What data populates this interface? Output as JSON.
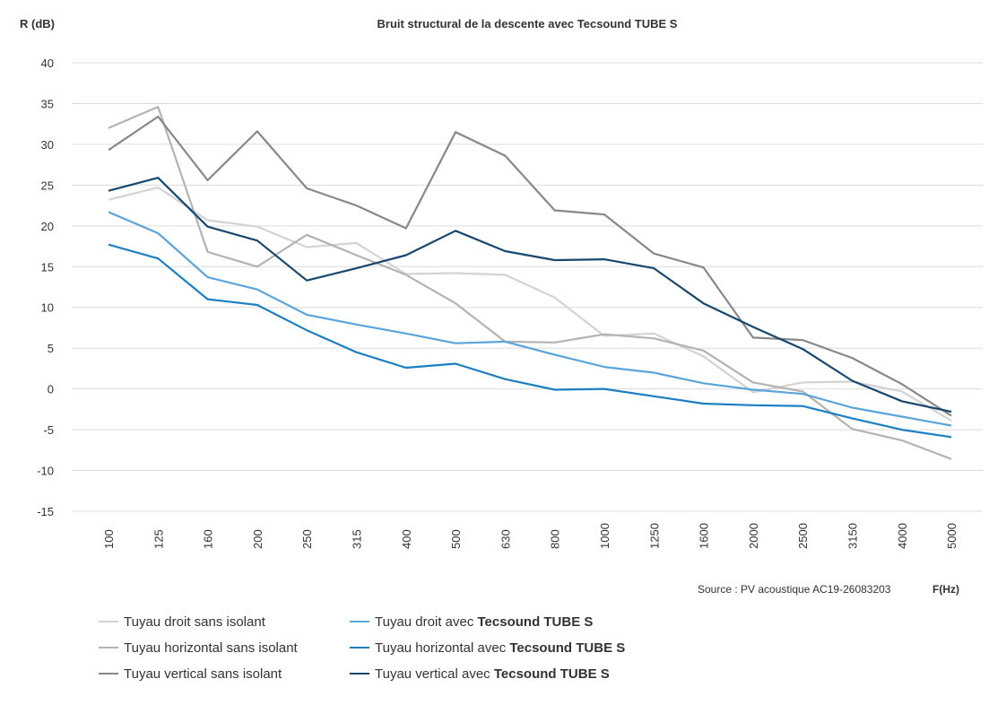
{
  "chart_data": {
    "type": "line",
    "title": "Bruit structural de la descente avec Tecsound TUBE S",
    "ylabel": "R (dB)",
    "xlabel": "F(Hz)",
    "source": "Source : PV acoustique AC19-26083203",
    "ylim": [
      -15,
      40
    ],
    "yticks": [
      40,
      35,
      30,
      25,
      20,
      15,
      10,
      5,
      0,
      -5,
      -10,
      -15
    ],
    "categories": [
      "100",
      "125",
      "160",
      "200",
      "250",
      "315",
      "400",
      "500",
      "630",
      "800",
      "1000",
      "1250",
      "1600",
      "2000",
      "2500",
      "3150",
      "4000",
      "5000"
    ],
    "grid": true,
    "legend_position": "bottom-left",
    "series": [
      {
        "name_plain": "Tuyau droit sans isolant",
        "name_bold": "",
        "color": "#d3d3d3",
        "values": [
          23.2,
          24.7,
          20.7,
          19.9,
          17.4,
          17.9,
          14.1,
          14.2,
          14.0,
          11.2,
          6.5,
          6.8,
          4.0,
          -0.4,
          0.8,
          0.9,
          -0.3,
          -3.9
        ]
      },
      {
        "name_plain": "Tuyau horizontal sans isolant",
        "name_bold": "",
        "color": "#b3b3b3",
        "values": [
          32.0,
          34.6,
          16.8,
          15.0,
          18.9,
          16.4,
          14.0,
          10.5,
          5.8,
          5.7,
          6.7,
          6.2,
          4.7,
          0.8,
          -0.3,
          -4.9,
          -6.3,
          -8.6
        ]
      },
      {
        "name_plain": "Tuyau vertical sans isolant",
        "name_bold": "",
        "color": "#888888",
        "values": [
          29.3,
          33.4,
          25.6,
          31.6,
          24.6,
          22.5,
          19.7,
          31.5,
          28.6,
          21.9,
          21.4,
          16.6,
          14.9,
          6.3,
          6.0,
          3.8,
          0.6,
          -3.3
        ]
      },
      {
        "name_plain": "Tuyau droit avec ",
        "name_bold": "Tecsound TUBE S",
        "color": "#5aa5db",
        "values": [
          21.7,
          19.1,
          13.7,
          12.2,
          9.1,
          7.9,
          6.8,
          5.6,
          5.8,
          4.2,
          2.7,
          2.0,
          0.7,
          -0.1,
          -0.6,
          -2.3,
          -3.4,
          -4.5
        ]
      },
      {
        "name_plain": "Tuyau horizontal avec ",
        "name_bold": "Tecsound TUBE S",
        "color": "#1c7fc2",
        "values": [
          17.7,
          16.0,
          11.0,
          10.3,
          7.2,
          4.5,
          2.6,
          3.1,
          1.2,
          -0.1,
          0.0,
          -0.9,
          -1.8,
          -2.0,
          -2.1,
          -3.6,
          -5.0,
          -5.9
        ]
      },
      {
        "name_plain": "Tuyau vertical avec ",
        "name_bold": "Tecsound TUBE S",
        "color": "#17476e",
        "values": [
          24.3,
          25.9,
          19.9,
          18.2,
          13.3,
          14.8,
          16.4,
          19.4,
          16.9,
          15.8,
          15.9,
          14.8,
          10.5,
          7.6,
          4.9,
          1.0,
          -1.5,
          -2.8
        ]
      }
    ]
  }
}
